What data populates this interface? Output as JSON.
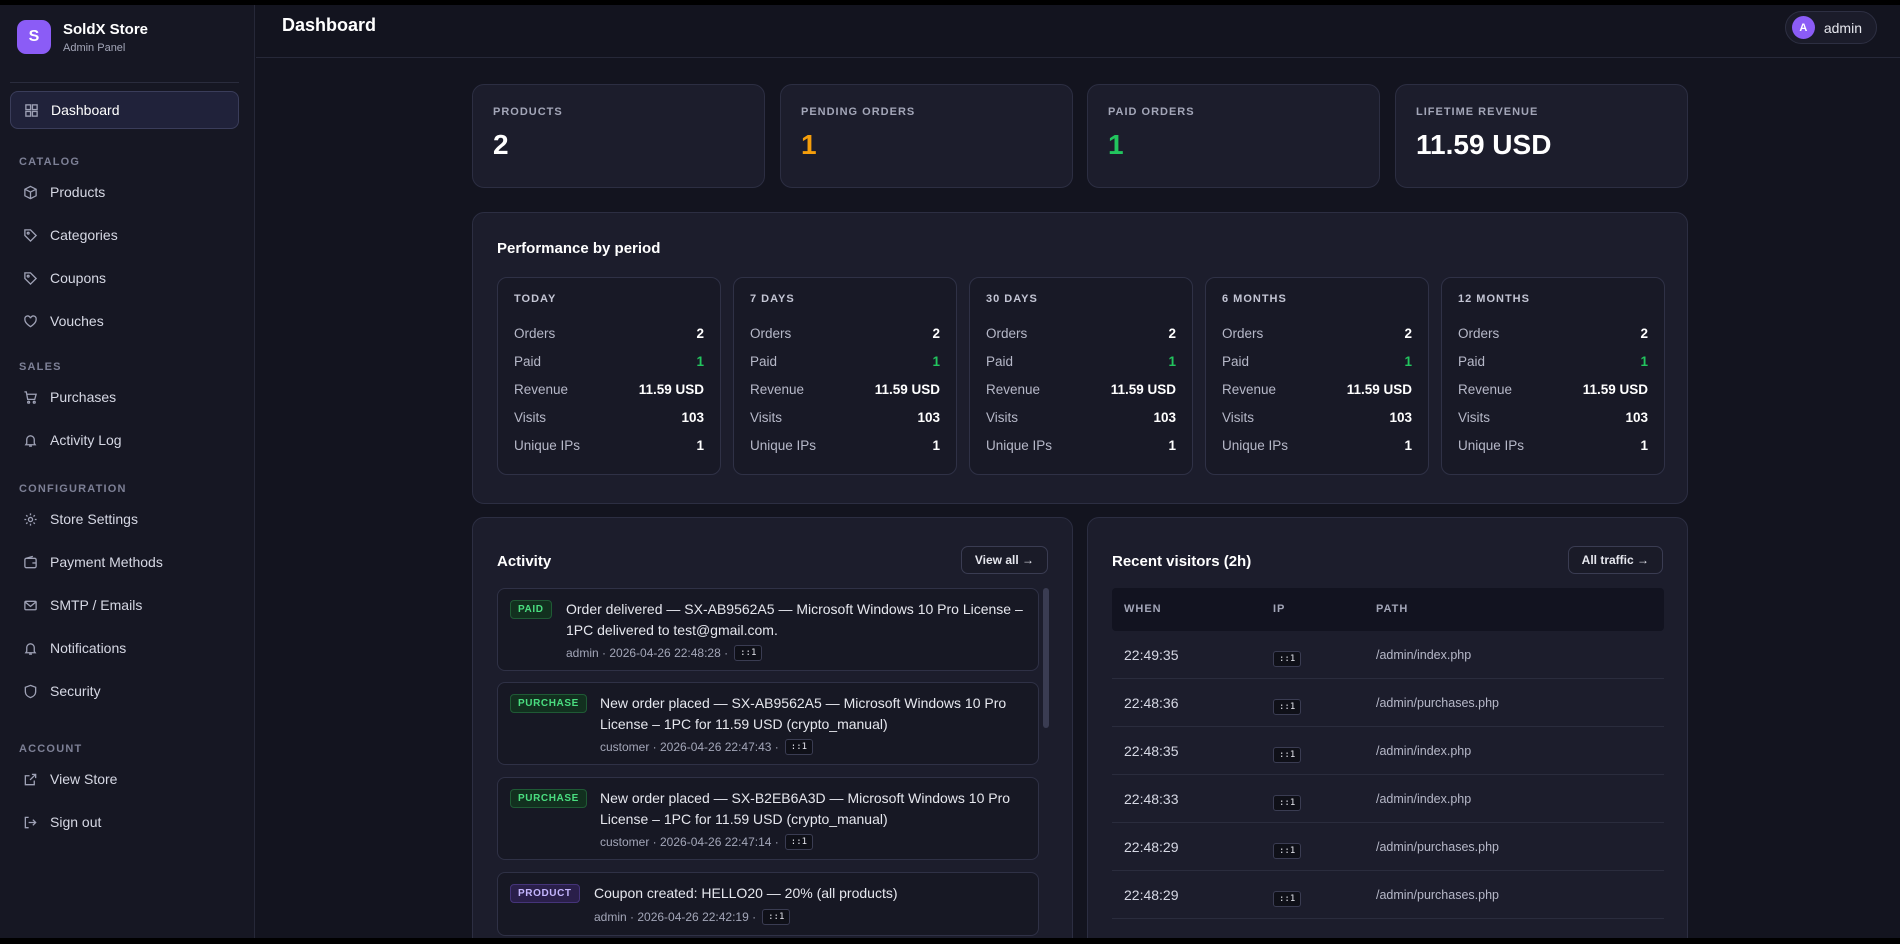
{
  "brand": {
    "initial": "S",
    "name": "SoldX Store",
    "subtitle": "Admin Panel"
  },
  "nav": {
    "dashboard": "Dashboard",
    "sections": {
      "catalog": "CATALOG",
      "sales": "SALES",
      "configuration": "CONFIGURATION",
      "account": "ACCOUNT"
    },
    "products": "Products",
    "categories": "Categories",
    "coupons": "Coupons",
    "vouches": "Vouches",
    "purchases": "Purchases",
    "activity_log": "Activity Log",
    "store_settings": "Store Settings",
    "payment_methods": "Payment Methods",
    "smtp_emails": "SMTP / Emails",
    "notifications": "Notifications",
    "security": "Security",
    "view_store": "View Store",
    "sign_out": "Sign out"
  },
  "header": {
    "title": "Dashboard",
    "user_initial": "A",
    "user_name": "admin"
  },
  "stats": [
    {
      "label": "PRODUCTS",
      "value": "2",
      "color": "#ffffff"
    },
    {
      "label": "PENDING ORDERS",
      "value": "1",
      "color": "#f59e0b"
    },
    {
      "label": "PAID ORDERS",
      "value": "1",
      "color": "#22c55e"
    },
    {
      "label": "LIFETIME REVENUE",
      "value": "11.59 USD",
      "color": "#ffffff"
    }
  ],
  "performance": {
    "title": "Performance by period",
    "row_labels": {
      "orders": "Orders",
      "paid": "Paid",
      "revenue": "Revenue",
      "visits": "Visits",
      "unique_ips": "Unique IPs"
    },
    "periods": [
      {
        "title": "TODAY",
        "orders": "2",
        "paid": "1",
        "revenue": "11.59 USD",
        "visits": "103",
        "unique_ips": "1"
      },
      {
        "title": "7 DAYS",
        "orders": "2",
        "paid": "1",
        "revenue": "11.59 USD",
        "visits": "103",
        "unique_ips": "1"
      },
      {
        "title": "30 DAYS",
        "orders": "2",
        "paid": "1",
        "revenue": "11.59 USD",
        "visits": "103",
        "unique_ips": "1"
      },
      {
        "title": "6 MONTHS",
        "orders": "2",
        "paid": "1",
        "revenue": "11.59 USD",
        "visits": "103",
        "unique_ips": "1"
      },
      {
        "title": "12 MONTHS",
        "orders": "2",
        "paid": "1",
        "revenue": "11.59 USD",
        "visits": "103",
        "unique_ips": "1"
      }
    ]
  },
  "activity": {
    "title": "Activity",
    "view_all": "View all →",
    "items": [
      {
        "badge": "PAID",
        "text": "Order delivered — SX-AB9562A5 — Microsoft Windows 10 Pro License – 1PC delivered to test@gmail.com.",
        "meta": "admin · 2026-04-26 22:48:28 ·",
        "ip": "::1"
      },
      {
        "badge": "PURCHASE",
        "text": "New order placed — SX-AB9562A5 — Microsoft Windows 10 Pro License – 1PC for 11.59 USD (crypto_manual)",
        "meta": "customer · 2026-04-26 22:47:43 ·",
        "ip": "::1"
      },
      {
        "badge": "PURCHASE",
        "text": "New order placed — SX-B2EB6A3D — Microsoft Windows 10 Pro License – 1PC for 11.59 USD (crypto_manual)",
        "meta": "customer · 2026-04-26 22:47:14 ·",
        "ip": "::1"
      },
      {
        "badge": "PRODUCT",
        "text": "Coupon created: HELLO20 — 20% (all products)",
        "meta": "admin · 2026-04-26 22:42:19 ·",
        "ip": "::1"
      }
    ]
  },
  "visitors": {
    "title": "Recent visitors (2h)",
    "all_traffic": "All traffic →",
    "columns": [
      "WHEN",
      "IP",
      "PATH"
    ],
    "rows": [
      {
        "when": "22:49:35",
        "ip": "::1",
        "path": "/admin/index.php"
      },
      {
        "when": "22:48:36",
        "ip": "::1",
        "path": "/admin/purchases.php"
      },
      {
        "when": "22:48:35",
        "ip": "::1",
        "path": "/admin/index.php"
      },
      {
        "when": "22:48:33",
        "ip": "::1",
        "path": "/admin/index.php"
      },
      {
        "when": "22:48:29",
        "ip": "::1",
        "path": "/admin/purchases.php"
      },
      {
        "when": "22:48:29",
        "ip": "::1",
        "path": "/admin/purchases.php"
      }
    ]
  }
}
